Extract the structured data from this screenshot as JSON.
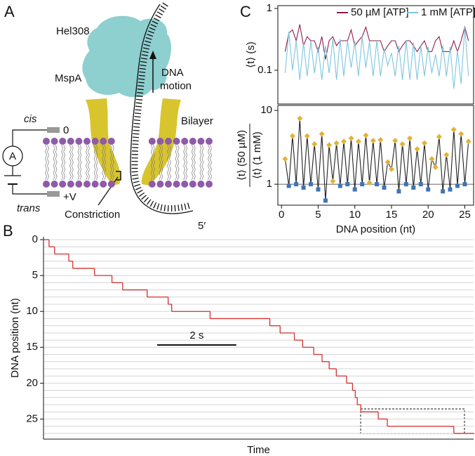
{
  "panel_labels": [
    "A",
    "B",
    "C"
  ],
  "diagram": {
    "enzyme": "Hel308",
    "motion": [
      "DNA",
      "motion"
    ],
    "pore": "MspA",
    "cis": "cis",
    "cis_voltage": "0",
    "ammeter": "A",
    "membrane": "Bilayer",
    "trans_voltage": "+V",
    "trans": "trans",
    "constriction": "Constriction",
    "end": "5′"
  },
  "chart_data": [
    {
      "type": "step",
      "xlabel": "Time",
      "ylabel": "DNA position (nt)",
      "color": "#d62e2e",
      "x": [
        0,
        0.14,
        0.28,
        0.64,
        0.74,
        1.29,
        1.73,
        2.0,
        2.62,
        3.15,
        3.24,
        4.21,
        5.72,
        5.98,
        6.34,
        6.55,
        6.83,
        7.04,
        7.22,
        7.4,
        7.66,
        7.81,
        7.88,
        7.93,
        8.02,
        8.46,
        8.69,
        10.37,
        10.87
      ],
      "values": [
        0,
        1,
        2,
        3,
        4,
        5,
        6,
        7,
        8,
        9,
        10,
        11,
        12,
        13,
        14,
        15,
        16,
        17,
        18,
        19,
        20,
        21,
        22,
        23,
        24,
        25,
        26,
        27,
        27
      ],
      "xlim": [
        0,
        10.87
      ],
      "ylim": [
        -0.4,
        27.8
      ],
      "y_inverted": true,
      "yticks": [
        0,
        5,
        10,
        15,
        20,
        25
      ],
      "minor_yticks": [
        0,
        1,
        2,
        3,
        4,
        5,
        6,
        7,
        8,
        9,
        10,
        11,
        12,
        13,
        14,
        15,
        16,
        17,
        18,
        19,
        20,
        21,
        22,
        23,
        24,
        25,
        26,
        27
      ],
      "grid": true,
      "scale_bar": {
        "value": 2,
        "label": "2 s"
      }
    },
    {
      "type": "line",
      "ylabel": "⟨t⟩ (s)",
      "yscale": "log",
      "ylim": [
        0.0285,
        1.11
      ],
      "yticks": [
        0.1,
        1
      ],
      "xlim": [
        -0.5,
        26.2
      ],
      "legend": "upper right",
      "x": [
        0.5,
        1,
        1.5,
        2,
        2.5,
        3,
        3.5,
        4,
        4.5,
        5,
        5.5,
        6,
        6.5,
        7,
        7.5,
        8,
        8.5,
        9,
        9.5,
        10,
        10.5,
        11,
        11.5,
        12,
        12.5,
        13,
        13.5,
        14,
        14.5,
        15,
        15.5,
        16,
        16.5,
        17,
        17.5,
        18,
        18.5,
        19,
        19.5,
        20,
        20.5,
        21,
        21.5,
        22,
        22.5,
        23,
        23.5,
        24,
        24.5,
        25,
        25.5
      ],
      "series": [
        {
          "name": "50 µM [ATP]",
          "color": "#8b1c4c",
          "values": [
            0.2,
            0.4,
            0.45,
            0.3,
            0.55,
            0.25,
            0.35,
            0.3,
            0.3,
            0.2,
            0.35,
            0.15,
            0.3,
            0.35,
            0.25,
            0.3,
            0.3,
            0.3,
            0.45,
            0.25,
            0.3,
            0.35,
            0.5,
            0.3,
            0.3,
            0.3,
            0.3,
            0.2,
            0.25,
            0.3,
            0.3,
            0.2,
            0.25,
            0.3,
            0.3,
            0.25,
            0.2,
            0.25,
            0.3,
            0.2,
            0.2,
            0.3,
            0.35,
            0.2,
            0.2,
            0.2,
            0.3,
            0.2,
            0.3,
            0.5,
            0.3
          ]
        },
        {
          "name": "1 mM [ATP]",
          "color": "#7cc6de",
          "values": [
            0.09,
            0.42,
            0.1,
            0.3,
            0.07,
            0.28,
            0.08,
            0.3,
            0.09,
            0.24,
            0.07,
            0.25,
            0.09,
            0.32,
            0.07,
            0.32,
            0.08,
            0.3,
            0.11,
            0.29,
            0.08,
            0.35,
            0.11,
            0.29,
            0.08,
            0.3,
            0.08,
            0.22,
            0.12,
            0.19,
            0.08,
            0.25,
            0.07,
            0.3,
            0.07,
            0.28,
            0.07,
            0.25,
            0.08,
            0.24,
            0.09,
            0.18,
            0.08,
            0.25,
            0.08,
            0.24,
            0.05,
            0.21,
            0.06,
            0.5,
            0.08
          ]
        }
      ]
    },
    {
      "type": "line",
      "ylabel": [
        "⟨t⟩ (50 µM)",
        "⟨t⟩ (1 mM)"
      ],
      "xlabel": "DNA position (nt)",
      "yscale": "log",
      "ylim": [
        0.52,
        11.7
      ],
      "yticks": [
        1,
        10
      ],
      "xlim": [
        -0.5,
        26.2
      ],
      "xticks": [
        0,
        5,
        10,
        15,
        20,
        25
      ],
      "hline": 1,
      "x": [
        0.5,
        1,
        1.5,
        2,
        2.5,
        3,
        3.5,
        4,
        4.5,
        5,
        5.5,
        6,
        6.5,
        7,
        7.5,
        8,
        8.5,
        9,
        9.5,
        10,
        10.5,
        11,
        11.5,
        12,
        12.5,
        13,
        13.5,
        14,
        14.5,
        15,
        15.5,
        16,
        16.5,
        17,
        17.5,
        18,
        18.5,
        19,
        19.5,
        20,
        20.5,
        21,
        21.5,
        22,
        22.5,
        23,
        23.5,
        24,
        24.5,
        25,
        25.5
      ],
      "series": [
        {
          "color": "#222222",
          "marker_above": "#e3b235",
          "marker_below": "#3e74b8",
          "values": [
            2.2,
            0.95,
            4.5,
            1.0,
            7.8,
            0.9,
            4.5,
            1.0,
            3.5,
            0.85,
            4.8,
            0.6,
            3.4,
            1.1,
            3.6,
            0.95,
            3.8,
            1.0,
            4.2,
            0.85,
            3.8,
            1.0,
            4.6,
            1.05,
            3.9,
            1.0,
            4.0,
            0.9,
            2.0,
            1.6,
            3.9,
            0.8,
            3.5,
            1.0,
            4.2,
            0.9,
            3.0,
            1.0,
            3.6,
            0.85,
            2.2,
            1.7,
            4.4,
            0.8,
            2.5,
            0.85,
            5.5,
            0.95,
            4.8,
            1.0,
            3.8
          ]
        }
      ]
    }
  ]
}
